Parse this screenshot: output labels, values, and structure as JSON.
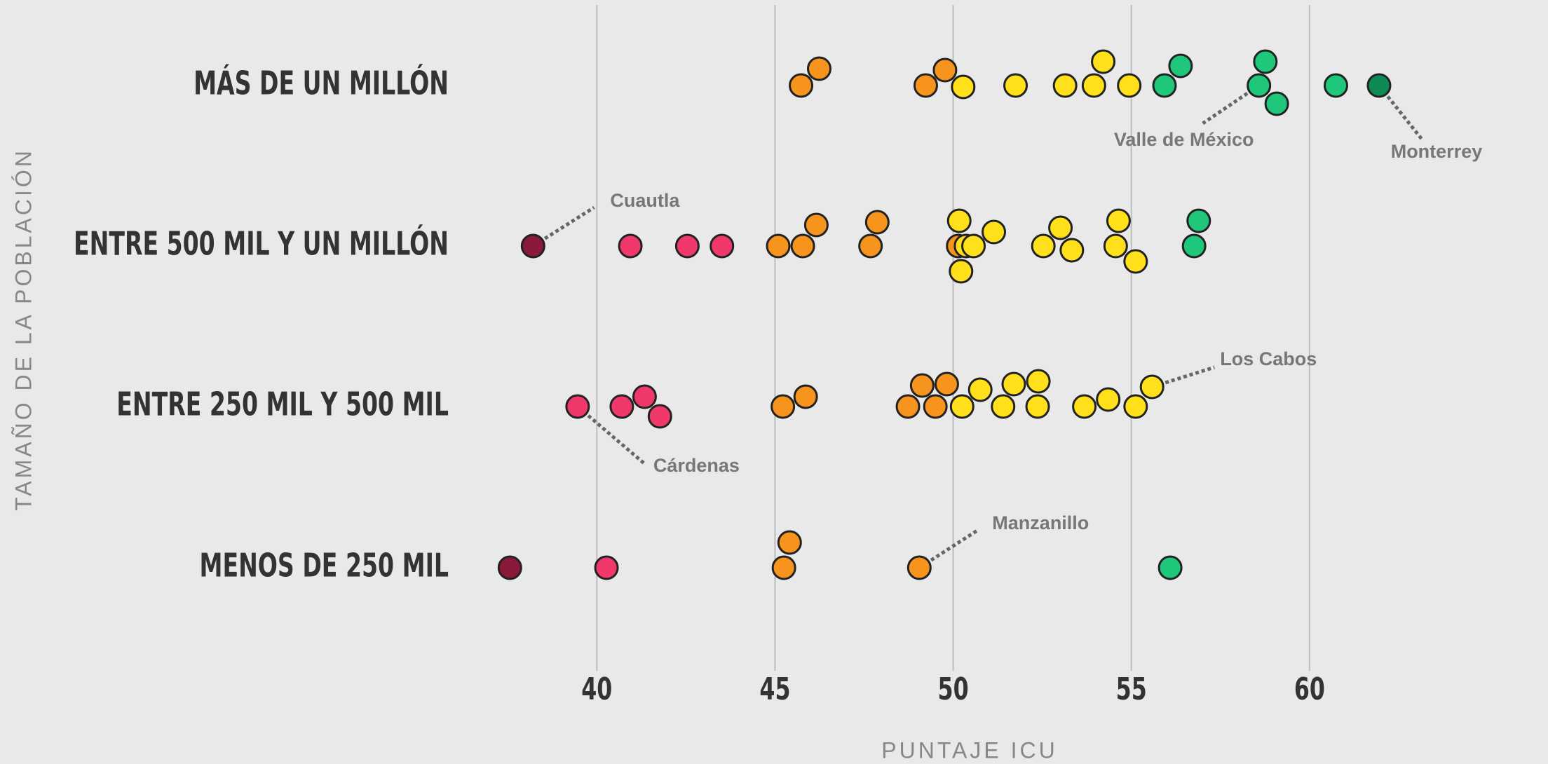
{
  "chart_data": {
    "type": "beeswarm",
    "xlabel": "PUNTAJE ICU",
    "ylabel": "TAMAÑO DE LA POBLACIÓN",
    "xlim": [
      36,
      65
    ],
    "xticks": [
      40,
      45,
      50,
      55,
      60
    ],
    "grid": true,
    "series": [
      {
        "name": "MÁS DE UN MILLÓN",
        "values": [
          45.73,
          46.24,
          49.23,
          49.77,
          50.28,
          51.75,
          53.14,
          53.95,
          54.21,
          54.94,
          55.93,
          56.38,
          58.58,
          58.76,
          59.08,
          60.74,
          61.95
        ],
        "colors": [
          "#f7941d",
          "#f7941d",
          "#f7941d",
          "#f7941d",
          "#ffe01b",
          "#ffe01b",
          "#ffe01b",
          "#ffe01b",
          "#ffe01b",
          "#ffe01b",
          "#1ec77a",
          "#1ec77a",
          "#1ec77a",
          "#1ec77a",
          "#1ec77a",
          "#1ec77a",
          "#0e8a55"
        ],
        "labels": [
          null,
          null,
          null,
          null,
          null,
          null,
          null,
          null,
          null,
          null,
          null,
          null,
          "Valle de México",
          null,
          null,
          null,
          "Monterrey"
        ]
      },
      {
        "name": "ENTRE 500 MIL Y UN MILLÓN",
        "values": [
          38.21,
          40.94,
          42.54,
          43.51,
          45.09,
          45.78,
          46.16,
          47.68,
          47.87,
          50.14,
          50.17,
          50.22,
          50.36,
          50.57,
          51.14,
          52.53,
          53.01,
          53.33,
          54.56,
          54.64,
          55.12,
          56.76,
          56.89
        ],
        "colors": [
          "#8b1a3a",
          "#f0386b",
          "#f0386b",
          "#f0386b",
          "#f7941d",
          "#f7941d",
          "#f7941d",
          "#f7941d",
          "#f7941d",
          "#f7941d",
          "#ffe01b",
          "#ffe01b",
          "#ffe01b",
          "#ffe01b",
          "#ffe01b",
          "#ffe01b",
          "#ffe01b",
          "#ffe01b",
          "#ffe01b",
          "#ffe01b",
          "#ffe01b",
          "#1ec77a",
          "#1ec77a"
        ],
        "labels": [
          "Cuautla",
          null,
          null,
          null,
          null,
          null,
          null,
          null,
          null,
          null,
          null,
          null,
          null,
          null,
          null,
          null,
          null,
          null,
          null,
          null,
          null,
          null,
          null
        ]
      },
      {
        "name": "ENTRE 250 MIL Y 500 MIL",
        "values": [
          39.46,
          40.7,
          41.34,
          41.77,
          45.22,
          45.86,
          48.73,
          49.13,
          49.5,
          49.82,
          50.25,
          50.76,
          51.4,
          51.7,
          52.37,
          52.39,
          53.68,
          54.35,
          55.12,
          55.58
        ],
        "colors": [
          "#f0386b",
          "#f0386b",
          "#f0386b",
          "#f0386b",
          "#f7941d",
          "#f7941d",
          "#f7941d",
          "#f7941d",
          "#f7941d",
          "#f7941d",
          "#ffe01b",
          "#ffe01b",
          "#ffe01b",
          "#ffe01b",
          "#ffe01b",
          "#ffe01b",
          "#ffe01b",
          "#ffe01b",
          "#ffe01b",
          "#ffe01b"
        ],
        "labels": [
          "Cárdenas",
          null,
          null,
          null,
          null,
          null,
          null,
          null,
          null,
          null,
          null,
          null,
          null,
          null,
          null,
          null,
          null,
          null,
          null,
          "Los Cabos"
        ]
      },
      {
        "name": "MENOS DE 250 MIL",
        "values": [
          37.56,
          40.27,
          45.25,
          45.41,
          49.05,
          56.09
        ],
        "colors": [
          "#8b1a3a",
          "#f0386b",
          "#f7941d",
          "#f7941d",
          "#f7941d",
          "#1ec77a"
        ],
        "labels": [
          null,
          null,
          null,
          null,
          "Manzanillo",
          null
        ]
      }
    ]
  }
}
